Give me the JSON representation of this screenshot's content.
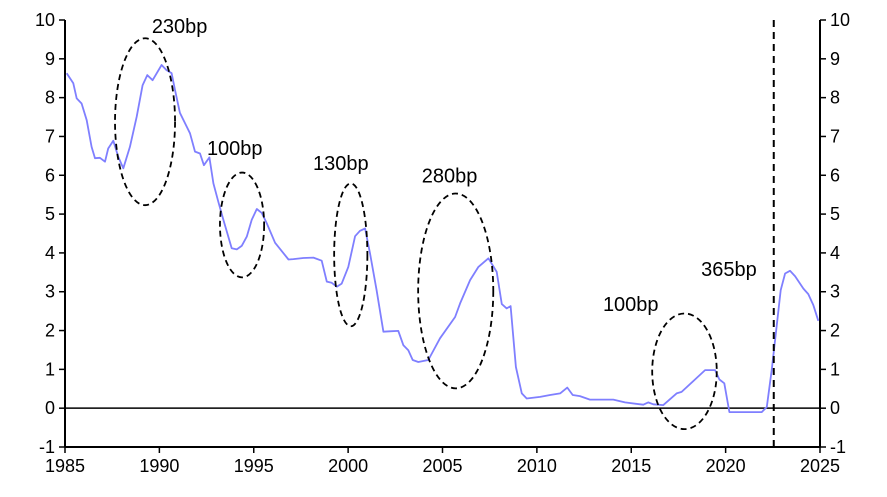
{
  "chart_data": {
    "type": "line",
    "title": "",
    "xlabel": "",
    "ylabel": "",
    "xlim": [
      1985,
      2025
    ],
    "ylim": [
      -1,
      10
    ],
    "x_ticks": [
      1985,
      1990,
      1995,
      2000,
      2005,
      2010,
      2015,
      2020,
      2025
    ],
    "y_ticks": [
      -1,
      0,
      1,
      2,
      3,
      4,
      5,
      6,
      7,
      8,
      9,
      10
    ],
    "y_axis_right": true,
    "grid": false,
    "zero_line": true,
    "line_color": "#7f7fff",
    "series": [
      {
        "x": [
          1985.09,
          1985.44,
          1985.62,
          1985.88,
          1986.15,
          1986.41,
          1986.59,
          1986.85,
          1987.12,
          1987.29,
          1987.56,
          1987.82,
          1988.09,
          1988.44,
          1988.8,
          1989.11,
          1989.36,
          1989.64,
          1990.12,
          1990.38,
          1990.65,
          1990.83,
          1991.09,
          1991.62,
          1991.89,
          1992.15,
          1992.36,
          1992.65,
          1992.86,
          1993.12,
          1993.39,
          1993.83,
          1994.1,
          1994.36,
          1994.63,
          1994.89,
          1995.16,
          1995.42,
          1995.69,
          1996.13,
          1996.84,
          1997.1,
          1997.63,
          1998.16,
          1998.6,
          1998.87,
          1999.13,
          1999.4,
          1999.66,
          2000.01,
          2000.37,
          2000.63,
          2000.9,
          2001.16,
          2001.51,
          2001.87,
          2002.2,
          2002.66,
          2002.93,
          2003.19,
          2003.42,
          2003.72,
          2004.25,
          2004.87,
          2005.67,
          2005.93,
          2006.46,
          2006.9,
          2007.43,
          2007.87,
          2008.14,
          2008.4,
          2008.61,
          2008.89,
          2009.2,
          2009.46,
          2010.17,
          2010.7,
          2011.23,
          2011.61,
          2011.9,
          2012.28,
          2012.81,
          2014.05,
          2014.67,
          2015.64,
          2015.9,
          2016.17,
          2016.7,
          2017.4,
          2017.67,
          2018.38,
          2018.91,
          2019.44,
          2019.67,
          2019.93,
          2020.2,
          2021.91,
          2022.18,
          2022.44,
          2022.7,
          2022.92,
          2023.15,
          2023.41,
          2023.68,
          2024.12,
          2024.38,
          2024.65,
          2024.91
        ],
        "y": [
          8.63,
          8.37,
          7.98,
          7.85,
          7.42,
          6.73,
          6.44,
          6.45,
          6.35,
          6.69,
          6.89,
          6.48,
          6.18,
          6.73,
          7.51,
          8.32,
          8.58,
          8.45,
          8.84,
          8.71,
          8.63,
          8.2,
          7.61,
          7.08,
          6.61,
          6.56,
          6.26,
          6.46,
          5.79,
          5.32,
          4.85,
          4.12,
          4.09,
          4.18,
          4.42,
          4.85,
          5.13,
          5.03,
          4.76,
          4.26,
          3.83,
          3.84,
          3.87,
          3.88,
          3.8,
          3.26,
          3.23,
          3.13,
          3.21,
          3.64,
          4.43,
          4.57,
          4.63,
          3.99,
          3.04,
          1.97,
          1.98,
          1.99,
          1.62,
          1.49,
          1.24,
          1.19,
          1.24,
          1.8,
          2.35,
          2.7,
          3.3,
          3.64,
          3.86,
          3.51,
          2.68,
          2.57,
          2.63,
          1.06,
          0.38,
          0.25,
          0.29,
          0.34,
          0.38,
          0.53,
          0.34,
          0.31,
          0.22,
          0.22,
          0.15,
          0.09,
          0.15,
          0.1,
          0.08,
          0.38,
          0.42,
          0.74,
          0.98,
          0.98,
          0.74,
          0.64,
          -0.1,
          -0.1,
          0.03,
          0.98,
          2.1,
          3.04,
          3.47,
          3.54,
          3.4,
          3.08,
          2.94,
          2.65,
          2.25
        ]
      }
    ],
    "vertical_marker": {
      "x": 2022.55,
      "style": "dashed"
    },
    "annotations": [
      {
        "label": "230bp",
        "label_x": 1989.6,
        "label_y": 9.66,
        "cx": 1989.24,
        "cy": 7.38,
        "rx": 1.59,
        "ry": 2.15
      },
      {
        "label": "100bp",
        "label_x": 1992.52,
        "label_y": 6.52,
        "cx": 1994.38,
        "cy": 4.72,
        "rx": 1.17,
        "ry": 1.35
      },
      {
        "label": "130bp",
        "label_x": 1998.14,
        "label_y": 6.13,
        "cx": 2000.14,
        "cy": 3.95,
        "rx": 0.88,
        "ry": 1.84
      },
      {
        "label": "280bp",
        "label_x": 2003.9,
        "label_y": 5.82,
        "cx": 2005.7,
        "cy": 3.02,
        "rx": 1.99,
        "ry": 2.51
      },
      {
        "label": "100bp",
        "label_x": 2013.5,
        "label_y": 2.5,
        "cx": 2017.82,
        "cy": 0.95,
        "rx": 1.71,
        "ry": 1.49
      },
      {
        "label": "365bp",
        "label_x": 2018.7,
        "label_y": 3.4
      }
    ]
  }
}
